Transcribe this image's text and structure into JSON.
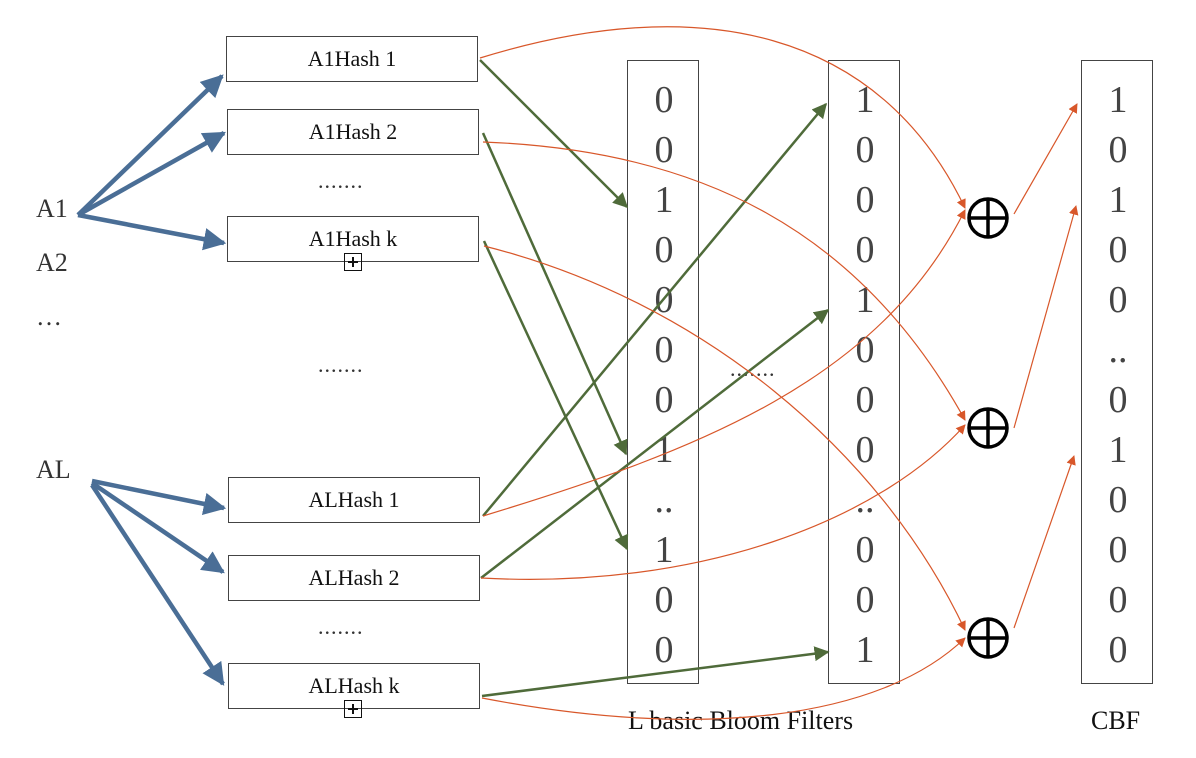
{
  "inputs": [
    "A1",
    "A2",
    "…",
    "AL"
  ],
  "hash_group_a1": [
    "A1Hash 1",
    "A1Hash 2",
    "A1Hash k"
  ],
  "hash_group_al": [
    "ALHash 1",
    "ALHash 2",
    "ALHash k"
  ],
  "dots": {
    "a1_mid": ".......",
    "between_groups": ".......",
    "al_mid": ".......",
    "between_filters": "......."
  },
  "bloom_filter_1": [
    "0",
    "0",
    "1",
    "0",
    "0",
    "0",
    "0",
    "1",
    "..",
    "1",
    "0",
    "0"
  ],
  "bloom_filter_L": [
    "1",
    "0",
    "0",
    "0",
    "1",
    "0",
    "0",
    "0",
    "..",
    "0",
    "0",
    "1"
  ],
  "cbf": [
    "1",
    "0",
    "1",
    "0",
    "0",
    "..",
    "0",
    "1",
    "0",
    "0",
    "0",
    "0"
  ],
  "labels": {
    "bloom_filters": "L basic Bloom Filters",
    "cbf": "CBF"
  },
  "colors": {
    "input_arrow": "#4a6e96",
    "hash_arrow": "#4f6b3a",
    "xor_arrow": "#d8572a"
  },
  "icons": {
    "xor": "circled-plus-icon",
    "plus_box": "boxed-plus-icon"
  }
}
